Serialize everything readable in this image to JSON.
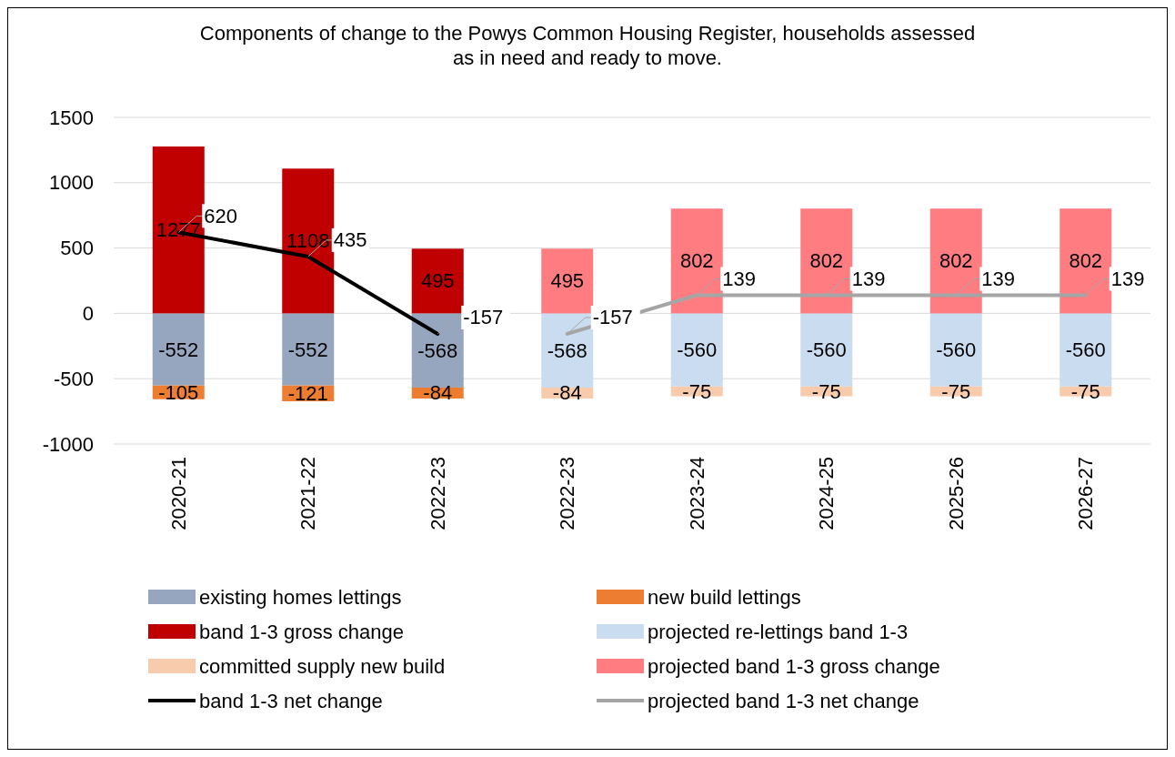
{
  "chart_data": {
    "type": "bar",
    "stacked": true,
    "title": "Components of change to the Powys Common Housing Register, households assessed as in need and ready to move.",
    "categories": [
      "2020-21",
      "2021-22",
      "2022-23",
      "2022-23",
      "2023-24",
      "2024-25",
      "2025-26",
      "2026-27"
    ],
    "series": [
      {
        "name": "existing homes lettings",
        "color": "#97a6bf",
        "values": [
          -552,
          -552,
          -568,
          null,
          null,
          null,
          null,
          null
        ]
      },
      {
        "name": "new build lettings",
        "color": "#ed7d31",
        "values": [
          -105,
          -121,
          -84,
          null,
          null,
          null,
          null,
          null
        ]
      },
      {
        "name": "band 1-3 gross change",
        "color": "#c00000",
        "values": [
          1277,
          1108,
          495,
          null,
          null,
          null,
          null,
          null
        ]
      },
      {
        "name": "projected re-lettings band 1-3",
        "color": "#cadcf0",
        "values": [
          null,
          null,
          null,
          -568,
          -560,
          -560,
          -560,
          -560
        ]
      },
      {
        "name": "committed supply new build",
        "color": "#f8cbad",
        "values": [
          null,
          null,
          null,
          -84,
          -75,
          -75,
          -75,
          -75
        ]
      },
      {
        "name": "projected band 1-3 gross change",
        "color": "#ff7c80",
        "values": [
          null,
          null,
          null,
          495,
          802,
          802,
          802,
          802
        ]
      },
      {
        "name": "band 1-3 net change",
        "type": "line",
        "color": "#000000",
        "values": [
          620,
          435,
          -157,
          null,
          null,
          null,
          null,
          null
        ]
      },
      {
        "name": "projected band 1-3 net change",
        "type": "line",
        "color": "#a5a5a5",
        "values": [
          null,
          null,
          null,
          -157,
          139,
          139,
          139,
          139
        ]
      }
    ],
    "ylim": [
      -1000,
      1500
    ],
    "yticks": [
      -1000,
      -500,
      0,
      500,
      1000,
      1500
    ],
    "grid": "y",
    "legend": "bottom",
    "data_labels": true,
    "line_style": "solid"
  }
}
